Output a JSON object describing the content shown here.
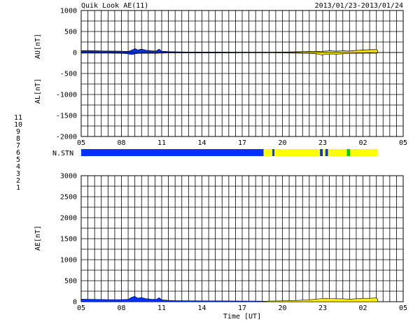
{
  "header": {
    "title": "Quik Look AE(11)",
    "date_range": "2013/01/23-2013/01/24"
  },
  "chart_data": [
    {
      "id": "au_al",
      "type": "area",
      "ylabels": [
        "AU[nT]",
        "AL[nT]"
      ],
      "ylim": [
        -2000,
        1000
      ],
      "yticks": [
        1000,
        500,
        0,
        -500,
        -1000,
        -1500,
        -2000
      ],
      "xlim": [
        5,
        29
      ],
      "xtick_labels": [
        "05",
        "08",
        "11",
        "14",
        "17",
        "20",
        "23",
        "02",
        "05"
      ],
      "grid": true,
      "x": [
        5,
        6,
        7,
        8,
        8.5,
        8.7,
        8.9,
        9.0,
        9.2,
        9.5,
        9.8,
        10.2,
        10.6,
        10.8,
        11.0,
        11.5,
        12,
        13,
        14,
        15,
        16,
        17,
        18,
        18.7,
        19,
        20,
        21,
        22,
        22.5,
        22.9,
        23.2,
        23.6,
        24,
        24.5,
        25,
        25.5,
        26,
        26.5,
        27,
        27.1
      ],
      "au": [
        45,
        40,
        35,
        30,
        25,
        45,
        75,
        95,
        60,
        80,
        55,
        40,
        35,
        80,
        30,
        20,
        15,
        12,
        10,
        10,
        8,
        8,
        8,
        6,
        8,
        10,
        15,
        25,
        30,
        20,
        35,
        40,
        30,
        40,
        35,
        50,
        60,
        65,
        70,
        50
      ],
      "al": [
        -15,
        -15,
        -15,
        -20,
        -30,
        -50,
        -45,
        -30,
        -25,
        -20,
        -20,
        -20,
        -20,
        -15,
        -15,
        -12,
        -10,
        -10,
        -10,
        -10,
        -10,
        -8,
        -8,
        -6,
        -8,
        -10,
        -15,
        -20,
        -30,
        -55,
        -45,
        -35,
        -40,
        -30,
        -25,
        -20,
        -20,
        -15,
        -20,
        -10
      ],
      "segments": [
        {
          "from": 5,
          "to": 18.7,
          "color": "#0033ff"
        },
        {
          "from": 18.7,
          "to": 27.1,
          "color": "#ffee00"
        }
      ]
    },
    {
      "id": "nstn",
      "type": "bar",
      "label": "N.STN",
      "xlim": [
        5,
        29
      ],
      "segments": [
        {
          "from": 5,
          "to": 18.6,
          "color": "#0033ff"
        },
        {
          "from": 18.6,
          "to": 19.25,
          "color": "#ffff00"
        },
        {
          "from": 19.25,
          "to": 19.4,
          "color": "#0033ff"
        },
        {
          "from": 19.4,
          "to": 22.8,
          "color": "#ffff00"
        },
        {
          "from": 22.8,
          "to": 23.0,
          "color": "#0033ff"
        },
        {
          "from": 23.0,
          "to": 23.2,
          "color": "#ffff00"
        },
        {
          "from": 23.2,
          "to": 23.4,
          "color": "#0033ff"
        },
        {
          "from": 23.4,
          "to": 24.8,
          "color": "#ffff00"
        },
        {
          "from": 24.8,
          "to": 25.05,
          "color": "#00cc00"
        },
        {
          "from": 25.05,
          "to": 27.1,
          "color": "#ffff00"
        }
      ]
    },
    {
      "id": "ae",
      "type": "area",
      "ylabel": "AE[nT]",
      "xlabel": "Time [UT]",
      "ylim": [
        0,
        3000
      ],
      "yticks": [
        3000,
        2500,
        2000,
        1500,
        1000,
        500,
        0
      ],
      "xlim": [
        5,
        29
      ],
      "xtick_labels": [
        "05",
        "08",
        "11",
        "14",
        "17",
        "20",
        "23",
        "02",
        "05"
      ],
      "grid": true,
      "x": [
        5,
        6,
        7,
        8,
        8.5,
        8.7,
        8.9,
        9.0,
        9.2,
        9.5,
        9.8,
        10.2,
        10.6,
        10.8,
        11.0,
        11.5,
        12,
        13,
        14,
        15,
        16,
        17,
        18,
        18.7,
        19,
        20,
        21,
        22,
        22.5,
        22.9,
        23.2,
        23.6,
        24,
        24.5,
        25,
        25.5,
        26,
        26.5,
        27,
        27.1
      ],
      "values": [
        60,
        55,
        50,
        50,
        55,
        95,
        120,
        125,
        85,
        100,
        75,
        60,
        55,
        95,
        45,
        32,
        25,
        22,
        20,
        20,
        18,
        16,
        16,
        12,
        16,
        20,
        30,
        45,
        60,
        75,
        80,
        75,
        70,
        70,
        60,
        70,
        80,
        80,
        90,
        60
      ],
      "segments": [
        {
          "from": 5,
          "to": 18.7,
          "color": "#0033ff"
        },
        {
          "from": 18.7,
          "to": 27.1,
          "color": "#ffee00"
        }
      ]
    }
  ],
  "legend": {
    "items": [
      {
        "label": "11",
        "color": "#00eeee"
      },
      {
        "label": "10",
        "color": "#ff00ff"
      },
      {
        "label": "9",
        "color": "#0000cc"
      },
      {
        "label": "8",
        "color": "#ffff66"
      },
      {
        "label": "7",
        "color": "#99ee66"
      },
      {
        "label": "6",
        "color": "#ee0000"
      },
      {
        "label": "5",
        "color": "#aaaaaa"
      },
      {
        "label": "4",
        "color": "#cccccc"
      },
      {
        "label": "3",
        "color": "#00aaaa"
      },
      {
        "label": "2",
        "color": "#cc00cc"
      },
      {
        "label": "1",
        "color": "#0000ff"
      }
    ]
  }
}
